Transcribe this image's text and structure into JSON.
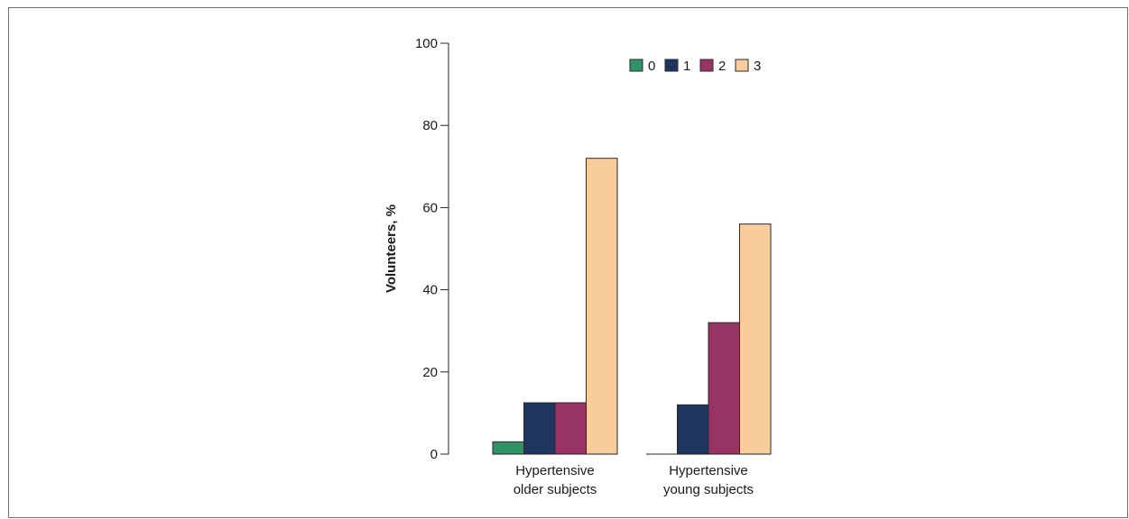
{
  "chart_data": {
    "type": "bar",
    "title": "",
    "xlabel": "",
    "ylabel": "Volunteers, %",
    "ylim": [
      0,
      100
    ],
    "yticks": [
      "0",
      "20",
      "40",
      "60",
      "80",
      "100"
    ],
    "categories": [
      [
        "Hypertensive",
        "older subjects"
      ],
      [
        "Hypertensive",
        "young subjects"
      ]
    ],
    "series": [
      {
        "name": "0",
        "color": "#2e9366",
        "values": [
          3,
          0
        ]
      },
      {
        "name": "1",
        "color": "#1e3560",
        "values": [
          12.5,
          12
        ]
      },
      {
        "name": "2",
        "color": "#983463",
        "values": [
          12.5,
          32
        ]
      },
      {
        "name": "3",
        "color": "#f9cc9c",
        "values": [
          72,
          56
        ]
      }
    ],
    "legend_position": "top-right",
    "grid": false
  }
}
